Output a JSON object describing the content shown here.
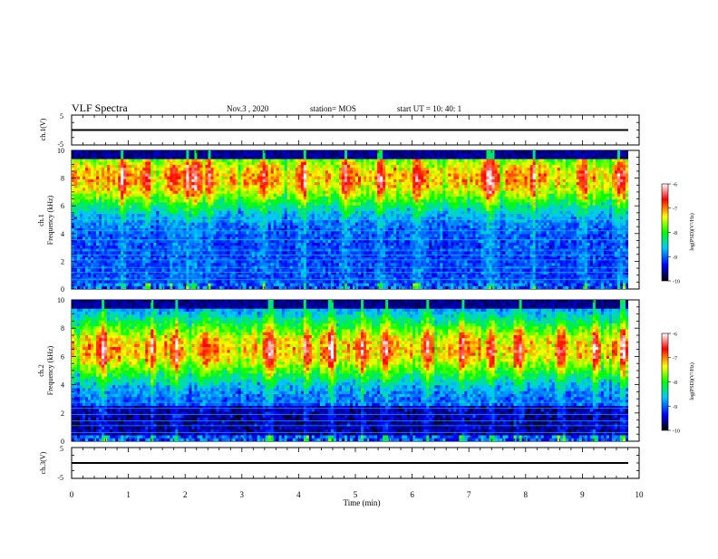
{
  "header": {
    "title": "VLF Spectra",
    "date": "Nov.3 , 2020",
    "station": "station= MOS",
    "start": "start UT = 10: 40: 1"
  },
  "chart_data": [
    {
      "type": "line",
      "name": "ch1-waveform",
      "ylabel": "ch.1(V)",
      "ylim": [
        -5,
        5
      ],
      "yticks": [
        "5",
        "-5"
      ],
      "x": [
        0,
        9.83
      ],
      "y": [
        0,
        0
      ]
    },
    {
      "type": "heatmap",
      "name": "ch1-spectrogram",
      "ylabel": "ch.1\nFrequency (kHz)",
      "ylim": [
        0,
        10
      ],
      "yticks": [
        "0",
        "2",
        "4",
        "6",
        "8",
        "10"
      ],
      "xlim": [
        0,
        10
      ],
      "data_end_min": 9.83,
      "colorbar": {
        "label": "log(PSD)(V²/Hz)",
        "range": [
          -10,
          -6
        ],
        "ticks": [
          "-6",
          "-7",
          "-8",
          "-9",
          "-10"
        ],
        "colors": [
          "#000000",
          "#0000ff",
          "#00c8ff",
          "#00ff00",
          "#ffff00",
          "#ff0000",
          "#ffffff"
        ]
      },
      "bright_times_min": [
        0.9,
        1.35,
        1.8,
        2.05,
        2.2,
        2.45,
        3.4,
        4.1,
        4.85,
        5.45,
        6.1,
        7.35,
        7.45,
        8.15,
        9.05,
        9.7
      ],
      "spectral_peak_khz": 8.0
    },
    {
      "type": "heatmap",
      "name": "ch2-spectrogram",
      "ylabel": "ch.2\nFrequency (kHz)",
      "ylim": [
        0,
        10
      ],
      "yticks": [
        "0",
        "2",
        "4",
        "6",
        "8",
        "10"
      ],
      "xlim": [
        0,
        10
      ],
      "data_end_min": 9.83,
      "colorbar": {
        "label": "log(PSD)(V²/Hz)",
        "range": [
          -10,
          -6
        ],
        "ticks": [
          "-6",
          "-7",
          "-8",
          "-9",
          "-10"
        ],
        "colors": [
          "#000000",
          "#0000ff",
          "#00c8ff",
          "#00ff00",
          "#ffff00",
          "#ff0000",
          "#ffffff"
        ]
      },
      "bright_times_min": [
        0.55,
        1.4,
        1.85,
        2.35,
        3.5,
        4.15,
        4.6,
        5.15,
        5.55,
        6.3,
        6.9,
        7.4,
        7.9,
        8.65,
        9.25,
        9.75
      ],
      "spectral_peak_khz": 6.5
    },
    {
      "type": "line",
      "name": "ch3-waveform",
      "ylabel": "ch.3(V)",
      "ylim": [
        -5,
        5
      ],
      "yticks": [
        "5",
        "-5"
      ],
      "xlabel": "Time (min)",
      "xlim": [
        0,
        10
      ],
      "xticks": [
        "0",
        "1",
        "2",
        "3",
        "4",
        "5",
        "6",
        "7",
        "8",
        "9",
        "10"
      ],
      "x": [
        0,
        9.83
      ],
      "y": [
        0,
        0
      ]
    }
  ]
}
